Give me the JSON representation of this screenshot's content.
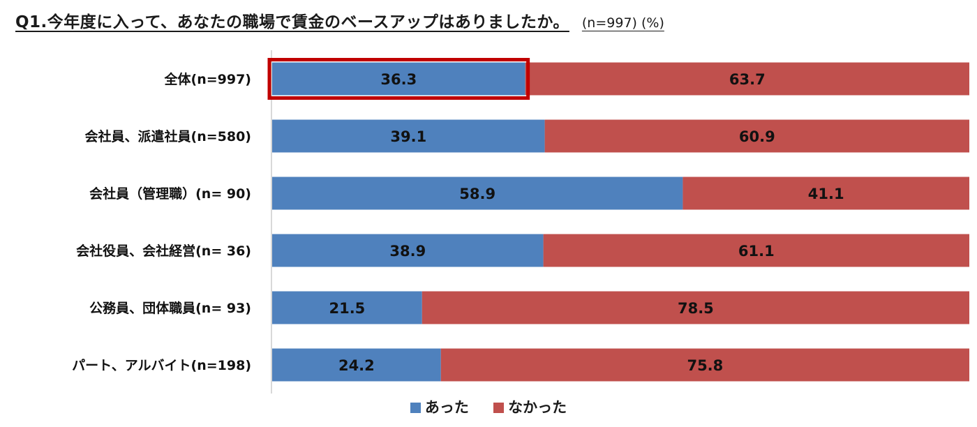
{
  "colors": {
    "yes": "#4f81bd",
    "no": "#c0504d",
    "highlight": "#c00000",
    "axis": "#bfbfbf"
  },
  "chart_data": {
    "type": "bar",
    "orientation": "horizontal",
    "stacked": true,
    "percent": true,
    "title": "Q1.今年度に入って、あなたの職場で賃金のベースアップはありましたか。",
    "subtitle": "(n=997) (%)",
    "xlim": [
      0,
      100
    ],
    "grid": false,
    "legend_position": "bottom",
    "categories": [
      "全体(n=997)",
      "会社員、派遣社員(n=580)",
      "会社員（管理職）(n= 90)",
      "会社役員、会社経営(n= 36)",
      "公務員、団体職員(n= 93)",
      "パート、アルバイト(n=198)"
    ],
    "series": [
      {
        "name": "あった",
        "values": [
          36.3,
          39.1,
          58.9,
          38.9,
          21.5,
          24.2
        ]
      },
      {
        "name": "なかった",
        "values": [
          63.7,
          60.9,
          41.1,
          61.1,
          78.5,
          75.8
        ]
      }
    ],
    "annotations": [
      {
        "type": "highlight-box",
        "category": "全体(n=997)",
        "series": "あった",
        "color": "#c00000"
      }
    ]
  }
}
